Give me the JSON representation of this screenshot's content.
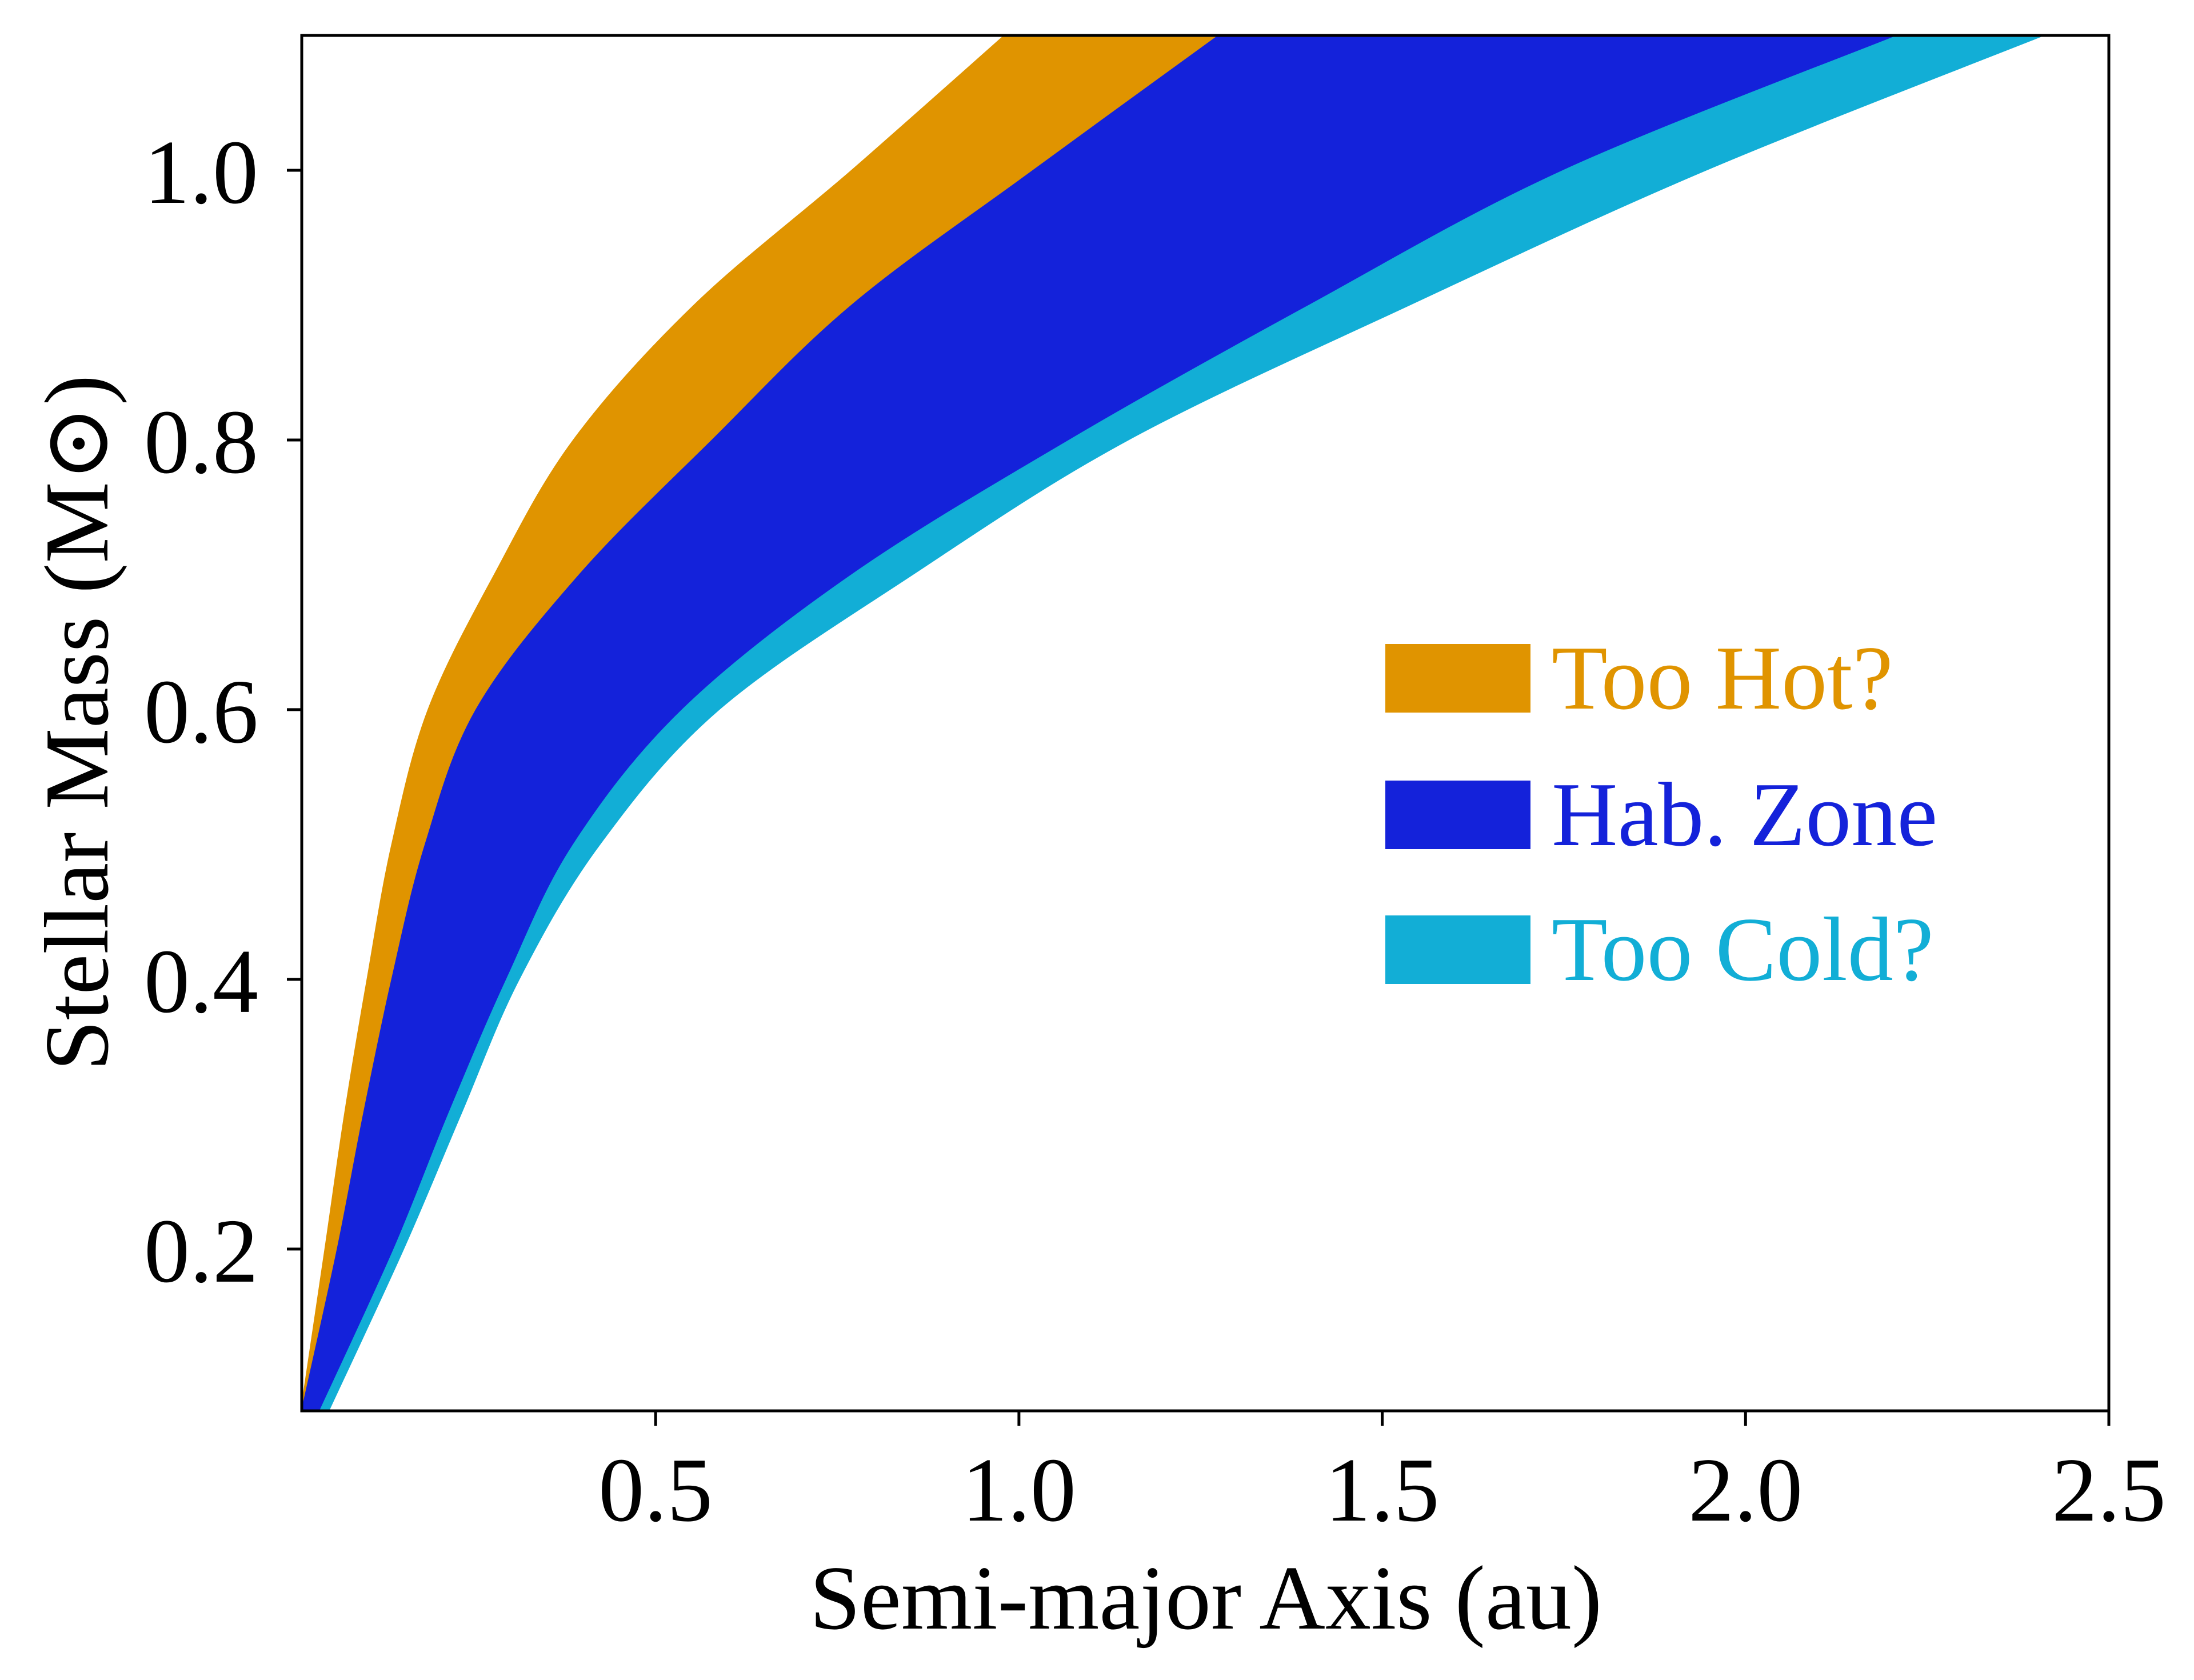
{
  "chart_data": {
    "type": "area",
    "title": "",
    "xlabel": "Semi-major Axis (au)",
    "ylabel": "Stellar Mass (M⊙)",
    "xlim": [
      0.013,
      2.5
    ],
    "ylim": [
      0.08,
      1.1
    ],
    "grid": false,
    "legend_placement": "center-right",
    "x_ticks": [
      {
        "value": 0.5,
        "label": "0.5"
      },
      {
        "value": 1.0,
        "label": "1.0"
      },
      {
        "value": 1.5,
        "label": "1.5"
      },
      {
        "value": 2.0,
        "label": "2.0"
      },
      {
        "value": 2.5,
        "label": "2.5"
      }
    ],
    "y_ticks": [
      {
        "value": 0.2,
        "label": "0.2"
      },
      {
        "value": 0.4,
        "label": "0.4"
      },
      {
        "value": 0.6,
        "label": "0.6"
      },
      {
        "value": 0.8,
        "label": "0.8"
      },
      {
        "value": 1.0,
        "label": "1.0"
      }
    ],
    "stellar_mass": [
      0.08,
      0.2,
      0.3,
      0.4,
      0.5,
      0.6,
      0.7,
      0.8,
      0.9,
      1.0,
      1.1
    ],
    "series": [
      {
        "name": "Too Hot?",
        "color": "#E09400",
        "inner_edge_au": [
          0.012,
          0.045,
          0.072,
          0.103,
          0.137,
          0.187,
          0.278,
          0.387,
          0.553,
          0.77,
          0.98
        ],
        "outer_edge_au": [
          0.013,
          0.062,
          0.098,
          0.137,
          0.183,
          0.253,
          0.395,
          0.578,
          0.77,
          1.02,
          1.275
        ]
      },
      {
        "name": "Hab. Zone",
        "color": "#1422DA",
        "inner_edge_au": [
          0.013,
          0.062,
          0.098,
          0.137,
          0.183,
          0.253,
          0.395,
          0.578,
          0.77,
          1.02,
          1.275
        ],
        "outer_edge_au": [
          0.038,
          0.14,
          0.215,
          0.295,
          0.387,
          0.537,
          0.77,
          1.07,
          1.4,
          1.75,
          2.21
        ]
      },
      {
        "name": "Too Cold?",
        "color": "#12AED6",
        "inner_edge_au": [
          0.038,
          0.14,
          0.215,
          0.295,
          0.387,
          0.537,
          0.77,
          1.07,
          1.4,
          1.75,
          2.21
        ],
        "outer_edge_au": [
          0.05,
          0.153,
          0.232,
          0.312,
          0.423,
          0.587,
          0.853,
          1.15,
          1.537,
          1.945,
          2.41
        ]
      }
    ]
  }
}
